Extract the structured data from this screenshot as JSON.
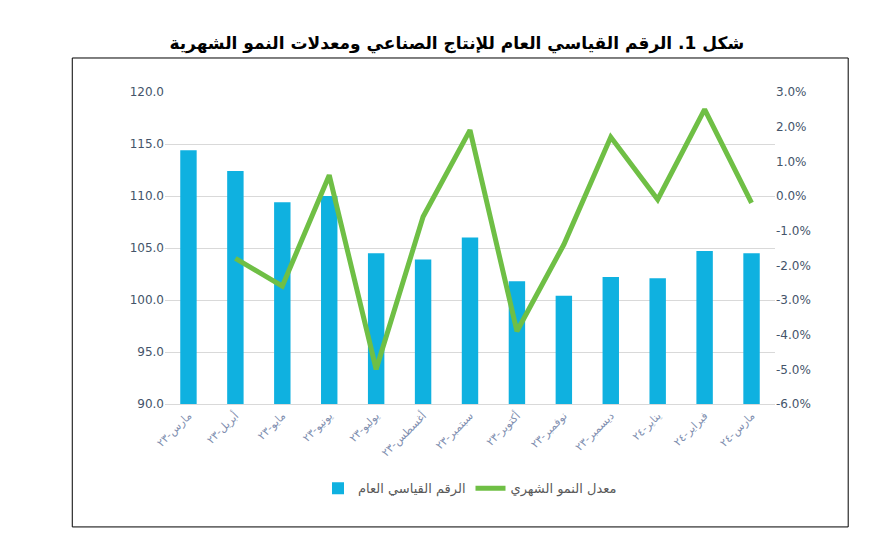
{
  "chart_data": {
    "type": "bar",
    "title": "شكل 1. الرقم القياسي العام للإنتاج الصناعي ومعدلات النمو الشهرية",
    "categories": [
      "مارس-٢٣",
      "أبريل-٢٣",
      "مايو-٢٣",
      "يونيو-٢٣",
      "يوليو-٢٣",
      "أغسطس-٢٣",
      "سبتمبر-٢٣",
      "أكتوبر-٢٣",
      "نوفمبر-٢٣",
      "ديسمبر-٢٣",
      "يناير-٢٤",
      "فبراير-٢٤",
      "مارس-٢٤"
    ],
    "series": [
      {
        "name": "الرقم القياسي العام",
        "type": "bar",
        "color": "#0fb1e0",
        "values": [
          114.4,
          112.4,
          109.4,
          110.0,
          104.5,
          103.9,
          106.0,
          101.8,
          100.4,
          102.2,
          102.1,
          104.7,
          104.5
        ]
      },
      {
        "name": "معدل النمو الشهري",
        "type": "line",
        "color": "#6fbf45",
        "axis": "y2",
        "values": [
          null,
          -1.8,
          -2.6,
          0.6,
          -5.0,
          -0.6,
          1.9,
          -3.9,
          -1.4,
          1.7,
          -0.1,
          2.5,
          -0.2
        ]
      }
    ],
    "ylim": [
      90,
      120
    ],
    "yticks": [
      {
        "value": 90,
        "label": "90.0"
      },
      {
        "value": 95,
        "label": "95.0"
      },
      {
        "value": 100,
        "label": "100.0"
      },
      {
        "value": 105,
        "label": "105.0"
      },
      {
        "value": 110,
        "label": "110.0"
      },
      {
        "value": 115,
        "label": "115.0"
      },
      {
        "value": 120,
        "label": "120.0"
      }
    ],
    "y2lim": [
      -6,
      3
    ],
    "y2ticks": [
      {
        "value": -6,
        "label": "-6.0%"
      },
      {
        "value": -5,
        "label": "-5.0%"
      },
      {
        "value": -4,
        "label": "-4.0%"
      },
      {
        "value": -3,
        "label": "-3.0%"
      },
      {
        "value": -2,
        "label": "-2.0%"
      },
      {
        "value": -1,
        "label": "-1.0%"
      },
      {
        "value": 0,
        "label": "0.0%"
      },
      {
        "value": 1,
        "label": "1.0%"
      },
      {
        "value": 2,
        "label": "2.0%"
      },
      {
        "value": 3,
        "label": "3.0%"
      }
    ],
    "grid": true,
    "legend": "bottom"
  }
}
